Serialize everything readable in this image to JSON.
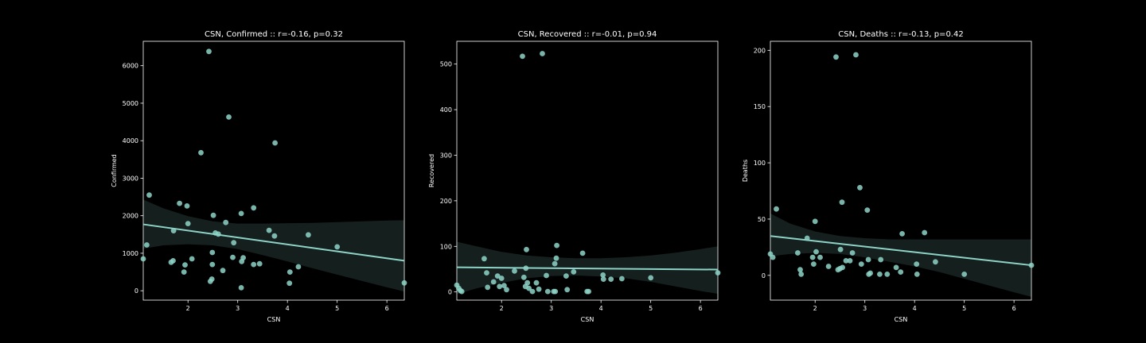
{
  "chart_data": [
    {
      "type": "scatter",
      "title": "CSN, Confirmed :: r=-0.16, p=0.32",
      "xlabel": "CSN",
      "ylabel": "Confirmed",
      "xlim": [
        1.1,
        6.35
      ],
      "ylim": [
        -250,
        6650
      ],
      "xticks": [
        2,
        3,
        4,
        5,
        6
      ],
      "yticks": [
        0,
        1000,
        2000,
        3000,
        4000,
        5000,
        6000
      ],
      "fit": {
        "x": [
          1.1,
          6.35
        ],
        "y": [
          1770,
          800
        ]
      },
      "ci_band": {
        "x": [
          1.1,
          1.5,
          2.0,
          2.5,
          3.0,
          3.5,
          4.0,
          4.5,
          5.0,
          5.5,
          6.0,
          6.35
        ],
        "upper": [
          2430,
          2200,
          1990,
          1850,
          1790,
          1790,
          1800,
          1810,
          1830,
          1850,
          1870,
          1880
        ],
        "lower": [
          1120,
          1210,
          1240,
          1210,
          1110,
          950,
          780,
          600,
          430,
          260,
          90,
          -20
        ]
      },
      "points": [
        {
          "x": 1.1,
          "y": 850
        },
        {
          "x": 1.17,
          "y": 1220
        },
        {
          "x": 1.22,
          "y": 2550
        },
        {
          "x": 1.66,
          "y": 760
        },
        {
          "x": 1.7,
          "y": 800
        },
        {
          "x": 1.71,
          "y": 1600
        },
        {
          "x": 1.83,
          "y": 2330
        },
        {
          "x": 1.92,
          "y": 500
        },
        {
          "x": 1.94,
          "y": 690
        },
        {
          "x": 1.98,
          "y": 2260
        },
        {
          "x": 2.0,
          "y": 1790
        },
        {
          "x": 2.08,
          "y": 850
        },
        {
          "x": 2.26,
          "y": 3680
        },
        {
          "x": 2.42,
          "y": 6380
        },
        {
          "x": 2.45,
          "y": 250
        },
        {
          "x": 2.48,
          "y": 310
        },
        {
          "x": 2.49,
          "y": 700
        },
        {
          "x": 2.49,
          "y": 1020
        },
        {
          "x": 2.51,
          "y": 2010
        },
        {
          "x": 2.55,
          "y": 1540
        },
        {
          "x": 2.61,
          "y": 1510
        },
        {
          "x": 2.7,
          "y": 540
        },
        {
          "x": 2.76,
          "y": 1820
        },
        {
          "x": 2.82,
          "y": 4630
        },
        {
          "x": 2.9,
          "y": 890
        },
        {
          "x": 2.92,
          "y": 1280
        },
        {
          "x": 3.07,
          "y": 2060
        },
        {
          "x": 3.07,
          "y": 80
        },
        {
          "x": 3.08,
          "y": 780
        },
        {
          "x": 3.11,
          "y": 880
        },
        {
          "x": 3.32,
          "y": 2210
        },
        {
          "x": 3.32,
          "y": 700
        },
        {
          "x": 3.44,
          "y": 720
        },
        {
          "x": 3.63,
          "y": 1610
        },
        {
          "x": 3.74,
          "y": 1460
        },
        {
          "x": 3.75,
          "y": 3940
        },
        {
          "x": 4.04,
          "y": 200
        },
        {
          "x": 4.05,
          "y": 500
        },
        {
          "x": 4.22,
          "y": 640
        },
        {
          "x": 4.42,
          "y": 1490
        },
        {
          "x": 5.0,
          "y": 1170
        },
        {
          "x": 6.35,
          "y": 210
        }
      ]
    },
    {
      "type": "scatter",
      "title": "CSN, Recovered :: r=-0.01, p=0.94",
      "xlabel": "CSN",
      "ylabel": "Recovered",
      "xlim": [
        1.1,
        6.35
      ],
      "ylim": [
        -18,
        550
      ],
      "xticks": [
        2,
        3,
        4,
        5,
        6
      ],
      "yticks": [
        0,
        100,
        200,
        300,
        400,
        500
      ],
      "fit": {
        "x": [
          1.1,
          6.35
        ],
        "y": [
          54,
          49
        ]
      },
      "ci_band": {
        "x": [
          1.1,
          1.5,
          2.0,
          2.5,
          3.0,
          3.5,
          4.0,
          4.5,
          5.0,
          5.5,
          6.0,
          6.35
        ],
        "upper": [
          110,
          100,
          88,
          80,
          76,
          74,
          74,
          76,
          80,
          86,
          94,
          100
        ],
        "lower": [
          -5,
          8,
          20,
          30,
          35,
          36,
          34,
          30,
          22,
          12,
          2,
          -4
        ]
      },
      "points": [
        {
          "x": 1.1,
          "y": 15
        },
        {
          "x": 1.14,
          "y": 8
        },
        {
          "x": 1.17,
          "y": 3
        },
        {
          "x": 1.2,
          "y": 1
        },
        {
          "x": 1.65,
          "y": 73
        },
        {
          "x": 1.7,
          "y": 42
        },
        {
          "x": 1.72,
          "y": 10
        },
        {
          "x": 1.84,
          "y": 22
        },
        {
          "x": 1.92,
          "y": 35
        },
        {
          "x": 1.96,
          "y": 12
        },
        {
          "x": 2.0,
          "y": 30
        },
        {
          "x": 2.05,
          "y": 14
        },
        {
          "x": 2.1,
          "y": 5
        },
        {
          "x": 2.26,
          "y": 46
        },
        {
          "x": 2.42,
          "y": 517
        },
        {
          "x": 2.45,
          "y": 32
        },
        {
          "x": 2.48,
          "y": 12
        },
        {
          "x": 2.49,
          "y": 52
        },
        {
          "x": 2.5,
          "y": 93
        },
        {
          "x": 2.52,
          "y": 20
        },
        {
          "x": 2.55,
          "y": 8
        },
        {
          "x": 2.62,
          "y": 1
        },
        {
          "x": 2.7,
          "y": 20
        },
        {
          "x": 2.75,
          "y": 6
        },
        {
          "x": 2.82,
          "y": 523
        },
        {
          "x": 2.9,
          "y": 36
        },
        {
          "x": 2.93,
          "y": 1
        },
        {
          "x": 3.05,
          "y": 1
        },
        {
          "x": 3.07,
          "y": 62
        },
        {
          "x": 3.08,
          "y": 1
        },
        {
          "x": 3.1,
          "y": 74
        },
        {
          "x": 3.11,
          "y": 102
        },
        {
          "x": 3.3,
          "y": 35
        },
        {
          "x": 3.32,
          "y": 5
        },
        {
          "x": 3.45,
          "y": 44
        },
        {
          "x": 3.63,
          "y": 85
        },
        {
          "x": 3.72,
          "y": 1
        },
        {
          "x": 3.75,
          "y": 1
        },
        {
          "x": 4.04,
          "y": 37
        },
        {
          "x": 4.05,
          "y": 28
        },
        {
          "x": 4.2,
          "y": 28
        },
        {
          "x": 4.42,
          "y": 29
        },
        {
          "x": 5.0,
          "y": 31
        },
        {
          "x": 6.35,
          "y": 42
        }
      ]
    },
    {
      "type": "scatter",
      "title": "CSN, Deaths :: r=-0.13, p=0.42",
      "xlabel": "CSN",
      "ylabel": "Deaths",
      "xlim": [
        1.1,
        6.35
      ],
      "ylim": [
        -22,
        208
      ],
      "xticks": [
        2,
        3,
        4,
        5,
        6
      ],
      "yticks": [
        0,
        50,
        100,
        150,
        200
      ],
      "fit": {
        "x": [
          1.1,
          6.35
        ],
        "y": [
          35,
          9
        ]
      },
      "ci_band": {
        "x": [
          1.1,
          1.5,
          2.0,
          2.5,
          3.0,
          3.5,
          4.0,
          4.5,
          5.0,
          5.5,
          6.0,
          6.35
        ],
        "upper": [
          55,
          46,
          39,
          35,
          33,
          32,
          32,
          32,
          32,
          32,
          32,
          32
        ],
        "lower": [
          17,
          19,
          20,
          19,
          16,
          12,
          8,
          3,
          -3,
          -9,
          -15,
          -19
        ]
      },
      "points": [
        {
          "x": 1.1,
          "y": 19
        },
        {
          "x": 1.15,
          "y": 16
        },
        {
          "x": 1.22,
          "y": 59
        },
        {
          "x": 1.65,
          "y": 20
        },
        {
          "x": 1.7,
          "y": 5
        },
        {
          "x": 1.72,
          "y": 1
        },
        {
          "x": 1.84,
          "y": 33
        },
        {
          "x": 1.95,
          "y": 16
        },
        {
          "x": 1.97,
          "y": 10
        },
        {
          "x": 2.0,
          "y": 48
        },
        {
          "x": 2.02,
          "y": 21
        },
        {
          "x": 2.1,
          "y": 16
        },
        {
          "x": 2.27,
          "y": 8
        },
        {
          "x": 2.42,
          "y": 194
        },
        {
          "x": 2.46,
          "y": 5
        },
        {
          "x": 2.5,
          "y": 6
        },
        {
          "x": 2.51,
          "y": 23
        },
        {
          "x": 2.54,
          "y": 65
        },
        {
          "x": 2.55,
          "y": 7
        },
        {
          "x": 2.62,
          "y": 13
        },
        {
          "x": 2.7,
          "y": 13
        },
        {
          "x": 2.75,
          "y": 20
        },
        {
          "x": 2.82,
          "y": 196
        },
        {
          "x": 2.9,
          "y": 78
        },
        {
          "x": 2.93,
          "y": 10
        },
        {
          "x": 3.05,
          "y": 58
        },
        {
          "x": 3.07,
          "y": 14
        },
        {
          "x": 3.08,
          "y": 1
        },
        {
          "x": 3.11,
          "y": 2
        },
        {
          "x": 3.3,
          "y": 1
        },
        {
          "x": 3.32,
          "y": 14
        },
        {
          "x": 3.45,
          "y": 1
        },
        {
          "x": 3.63,
          "y": 7
        },
        {
          "x": 3.72,
          "y": 3
        },
        {
          "x": 3.75,
          "y": 37
        },
        {
          "x": 4.04,
          "y": 10
        },
        {
          "x": 4.05,
          "y": 1
        },
        {
          "x": 4.2,
          "y": 38
        },
        {
          "x": 4.42,
          "y": 12
        },
        {
          "x": 5.0,
          "y": 1
        },
        {
          "x": 6.35,
          "y": 9
        }
      ]
    }
  ]
}
